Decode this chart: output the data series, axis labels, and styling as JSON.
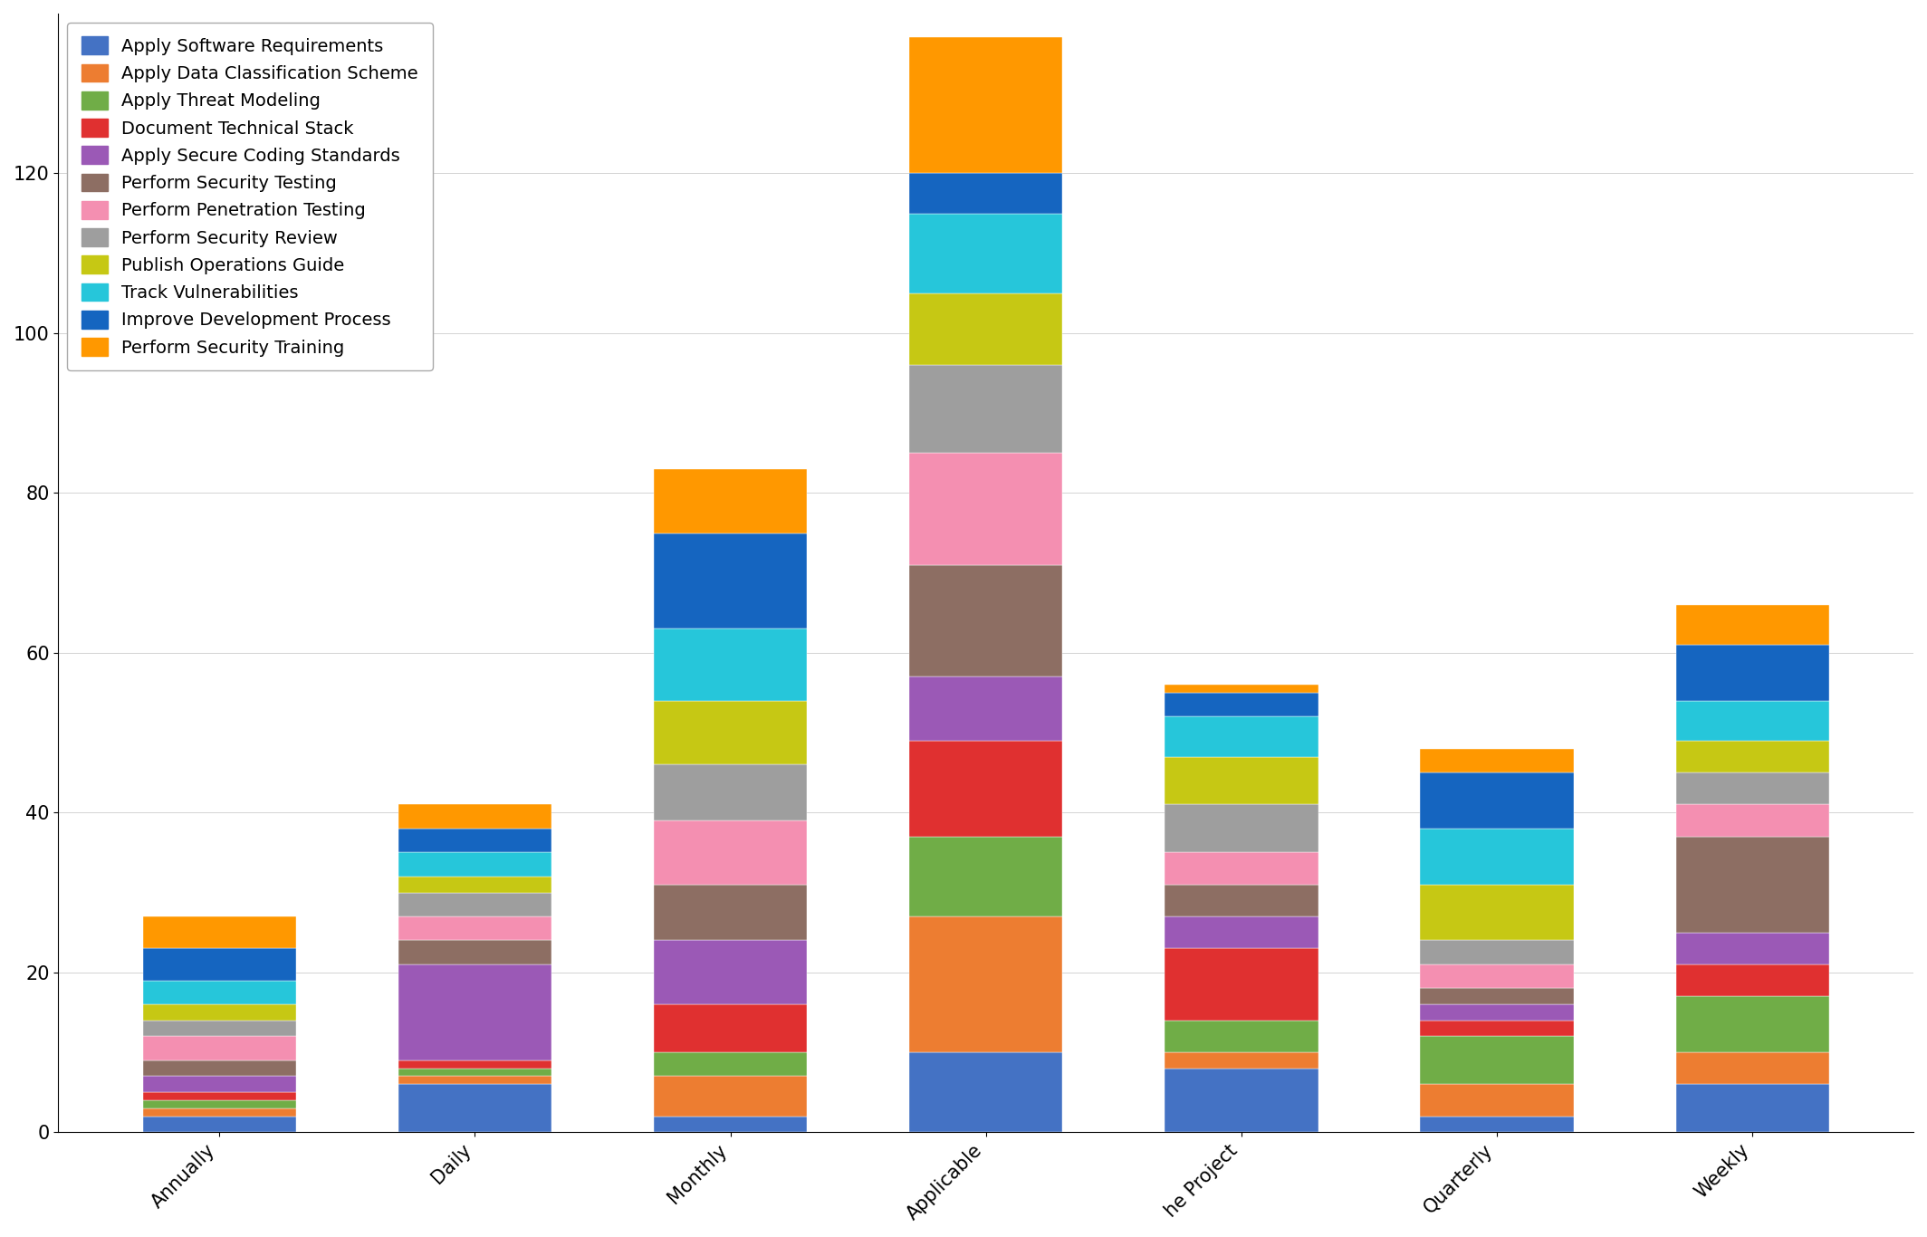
{
  "categories": [
    "Annually",
    "Daily",
    "Monthly",
    "Applicable",
    "he Project",
    "Quarterly",
    "Weekly"
  ],
  "series": [
    {
      "label": "Apply Software Requirements",
      "color": "#4472c4",
      "values": [
        2,
        6,
        2,
        10,
        8,
        2,
        6
      ]
    },
    {
      "label": "Apply Data Classification Scheme",
      "color": "#ed7d31",
      "values": [
        1,
        1,
        5,
        17,
        2,
        4,
        4
      ]
    },
    {
      "label": "Apply Threat Modeling",
      "color": "#70ad47",
      "values": [
        1,
        1,
        3,
        10,
        4,
        6,
        7
      ]
    },
    {
      "label": "Document Technical Stack",
      "color": "#e03030",
      "values": [
        1,
        1,
        6,
        12,
        9,
        2,
        4
      ]
    },
    {
      "label": "Apply Secure Coding Standards",
      "color": "#9b59b6",
      "values": [
        2,
        12,
        8,
        8,
        4,
        2,
        4
      ]
    },
    {
      "label": "Perform Security Testing",
      "color": "#8d6e63",
      "values": [
        2,
        3,
        7,
        14,
        4,
        2,
        12
      ]
    },
    {
      "label": "Perform Penetration Testing",
      "color": "#f48fb1",
      "values": [
        3,
        3,
        8,
        14,
        4,
        3,
        4
      ]
    },
    {
      "label": "Perform Security Review",
      "color": "#9e9e9e",
      "values": [
        2,
        3,
        7,
        11,
        6,
        3,
        4
      ]
    },
    {
      "label": "Publish Operations Guide",
      "color": "#c6c814",
      "values": [
        2,
        2,
        8,
        9,
        6,
        7,
        4
      ]
    },
    {
      "label": "Track Vulnerabilities",
      "color": "#26c6da",
      "values": [
        3,
        3,
        9,
        10,
        5,
        7,
        5
      ]
    },
    {
      "label": "Improve Development Process",
      "color": "#1565c0",
      "values": [
        4,
        3,
        12,
        5,
        3,
        7,
        7
      ]
    },
    {
      "label": "Perform Security Training",
      "color": "#ff9800",
      "values": [
        4,
        3,
        8,
        17,
        1,
        3,
        5
      ]
    }
  ],
  "ylim": [
    0,
    140
  ],
  "yticks": [
    0,
    20,
    40,
    60,
    80,
    100,
    120
  ],
  "background_color": "#ffffff",
  "bar_width": 0.6,
  "legend_loc": "upper left",
  "legend_fontsize": 14,
  "tick_fontsize": 15
}
